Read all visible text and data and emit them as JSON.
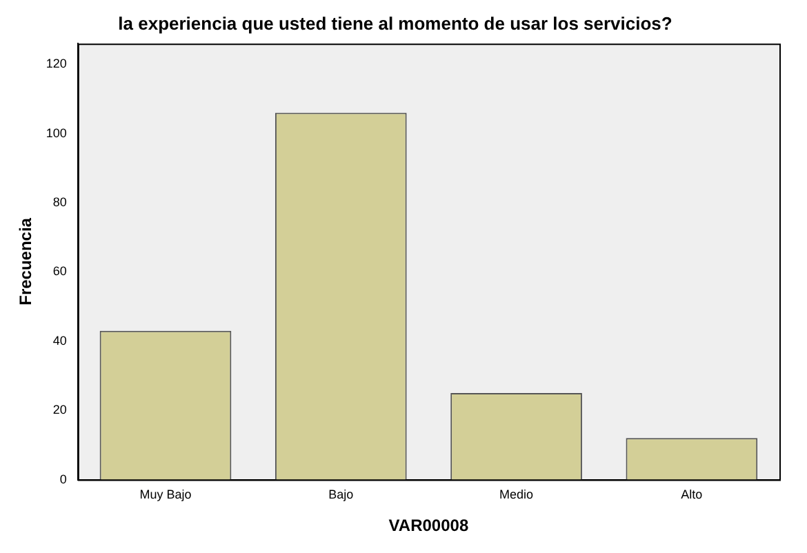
{
  "chart_data": {
    "type": "bar",
    "title": "la experiencia que usted tiene al momento de usar los servicios?",
    "xlabel": "VAR00008",
    "ylabel": "Frecuencia",
    "categories": [
      "Muy Bajo",
      "Bajo",
      "Medio",
      "Alto"
    ],
    "values": [
      43,
      106,
      25,
      12
    ],
    "color": "#d3cf97",
    "ylim": [
      0,
      126
    ],
    "yticks": [
      0,
      20,
      40,
      60,
      80,
      100,
      120
    ],
    "grid": false,
    "legend": false
  }
}
